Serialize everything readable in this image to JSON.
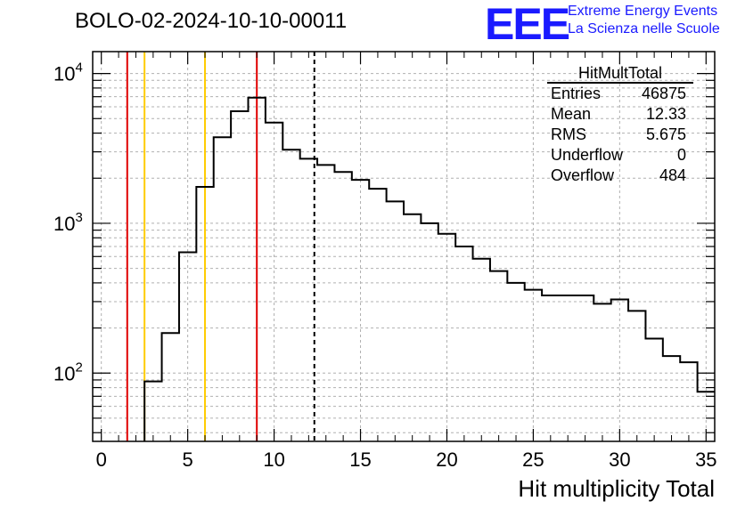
{
  "header": {
    "title": "BOLO-02-2024-10-10-00011",
    "logo": "EEE",
    "logo_line1": "Extreme Energy Events",
    "logo_line2": "La Scienza nelle Scuole"
  },
  "stats": {
    "title": "HitMultTotal",
    "rows": [
      {
        "label": "Entries",
        "value": "46875"
      },
      {
        "label": "Mean",
        "value": "12.33"
      },
      {
        "label": "RMS",
        "value": "5.675"
      },
      {
        "label": "Underflow",
        "value": "0"
      },
      {
        "label": "Overflow",
        "value": "484"
      }
    ]
  },
  "chart_data": {
    "type": "histogram",
    "title": "BOLO-02-2024-10-10-00011",
    "xlabel": "Hit multiplicity Total",
    "ylabel": "",
    "xlim": [
      -0.5,
      35.5
    ],
    "ylim": [
      35,
      14000
    ],
    "yscale": "log",
    "grid": true,
    "x_ticks": [
      0,
      5,
      10,
      15,
      20,
      25,
      30,
      35
    ],
    "y_tick_labels": [
      {
        "base": "10",
        "exp": "2",
        "value": 100
      },
      {
        "base": "10",
        "exp": "3",
        "value": 1000
      },
      {
        "base": "10",
        "exp": "4",
        "value": 10000
      }
    ],
    "bin_width": 1,
    "bin_centers": [
      3,
      4,
      5,
      6,
      7,
      8,
      9,
      10,
      11,
      12,
      13,
      14,
      15,
      16,
      17,
      18,
      19,
      20,
      21,
      22,
      23,
      24,
      25,
      26,
      27,
      28,
      29,
      30,
      31,
      32,
      33,
      34,
      35
    ],
    "counts": [
      88,
      185,
      640,
      1750,
      3750,
      5600,
      6900,
      4700,
      3100,
      2700,
      2450,
      2200,
      1950,
      1700,
      1400,
      1150,
      1000,
      850,
      700,
      580,
      480,
      400,
      360,
      330,
      330,
      330,
      290,
      310,
      260,
      170,
      130,
      118,
      75
    ],
    "vertical_lines": [
      {
        "x": 1.5,
        "color": "#e00000",
        "style": "solid"
      },
      {
        "x": 2.5,
        "color": "#ffcc00",
        "style": "solid"
      },
      {
        "x": 6.0,
        "color": "#ffcc00",
        "style": "solid"
      },
      {
        "x": 9.0,
        "color": "#e00000",
        "style": "solid"
      },
      {
        "x": 12.33,
        "color": "#000000",
        "style": "dashed"
      }
    ],
    "legend_placement": "top-right"
  }
}
